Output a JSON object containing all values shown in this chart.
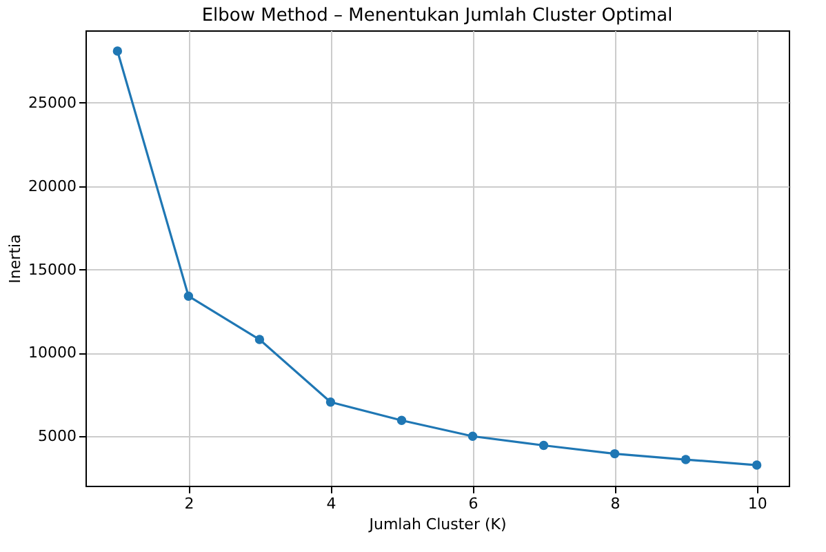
{
  "chart_data": {
    "type": "line",
    "title": "Elbow Method – Menentukan Jumlah Cluster Optimal",
    "xlabel": "Jumlah Cluster (K)",
    "ylabel": "Inertia",
    "x": [
      1,
      2,
      3,
      4,
      5,
      6,
      7,
      8,
      9,
      10
    ],
    "series": [
      {
        "color": "#1f77b4",
        "values": [
          28100,
          13400,
          10800,
          7050,
          5950,
          5000,
          4450,
          3950,
          3600,
          3270
        ]
      }
    ],
    "xlim": [
      0.55,
      10.45
    ],
    "ylim": [
      2030,
      29340
    ],
    "xticks": [
      2,
      4,
      6,
      8,
      10
    ],
    "yticks": [
      5000,
      10000,
      15000,
      20000,
      25000
    ],
    "grid": true,
    "marker": "circle",
    "line_style": "solid"
  }
}
